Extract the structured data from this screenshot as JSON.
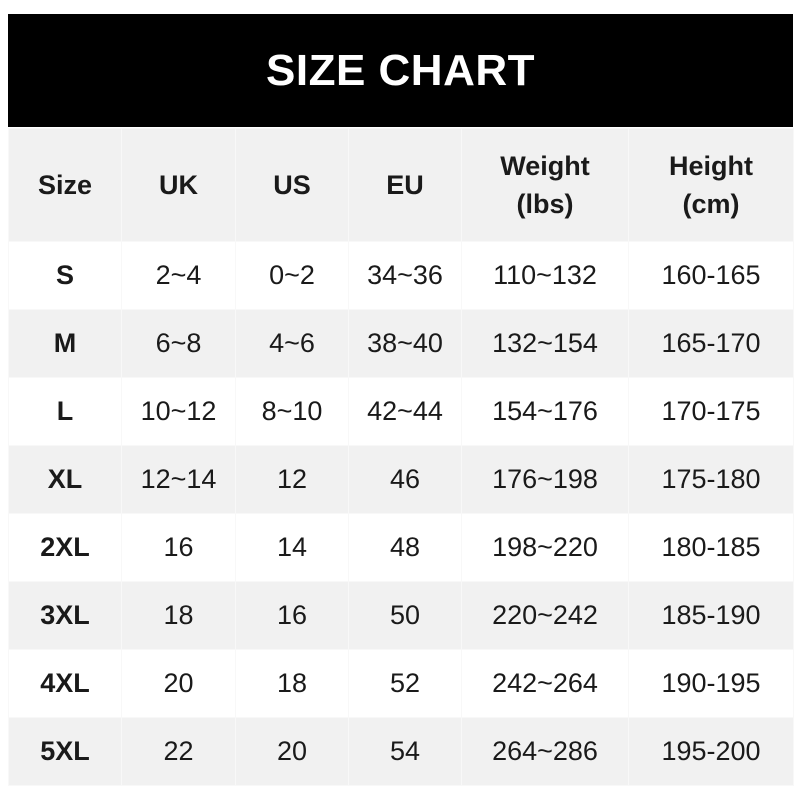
{
  "title": "SIZE CHART",
  "headers": [
    "Size",
    "UK",
    "US",
    "EU",
    "Weight (lbs)",
    "Height (cm)"
  ],
  "header_lines": [
    [
      "Size"
    ],
    [
      "UK"
    ],
    [
      "US"
    ],
    [
      "EU"
    ],
    [
      "Weight",
      "(lbs)"
    ],
    [
      "Height",
      "(cm)"
    ]
  ],
  "rows": [
    [
      "S",
      "2~4",
      "0~2",
      "34~36",
      "110~132",
      "160-165"
    ],
    [
      "M",
      "6~8",
      "4~6",
      "38~40",
      "132~154",
      "165-170"
    ],
    [
      "L",
      "10~12",
      "8~10",
      "42~44",
      "154~176",
      "170-175"
    ],
    [
      "XL",
      "12~14",
      "12",
      "46",
      "176~198",
      "175-180"
    ],
    [
      "2XL",
      "16",
      "14",
      "48",
      "198~220",
      "180-185"
    ],
    [
      "3XL",
      "18",
      "16",
      "50",
      "220~242",
      "185-190"
    ],
    [
      "4XL",
      "20",
      "18",
      "52",
      "242~264",
      "190-195"
    ],
    [
      "5XL",
      "22",
      "20",
      "54",
      "264~286",
      "195-200"
    ]
  ]
}
